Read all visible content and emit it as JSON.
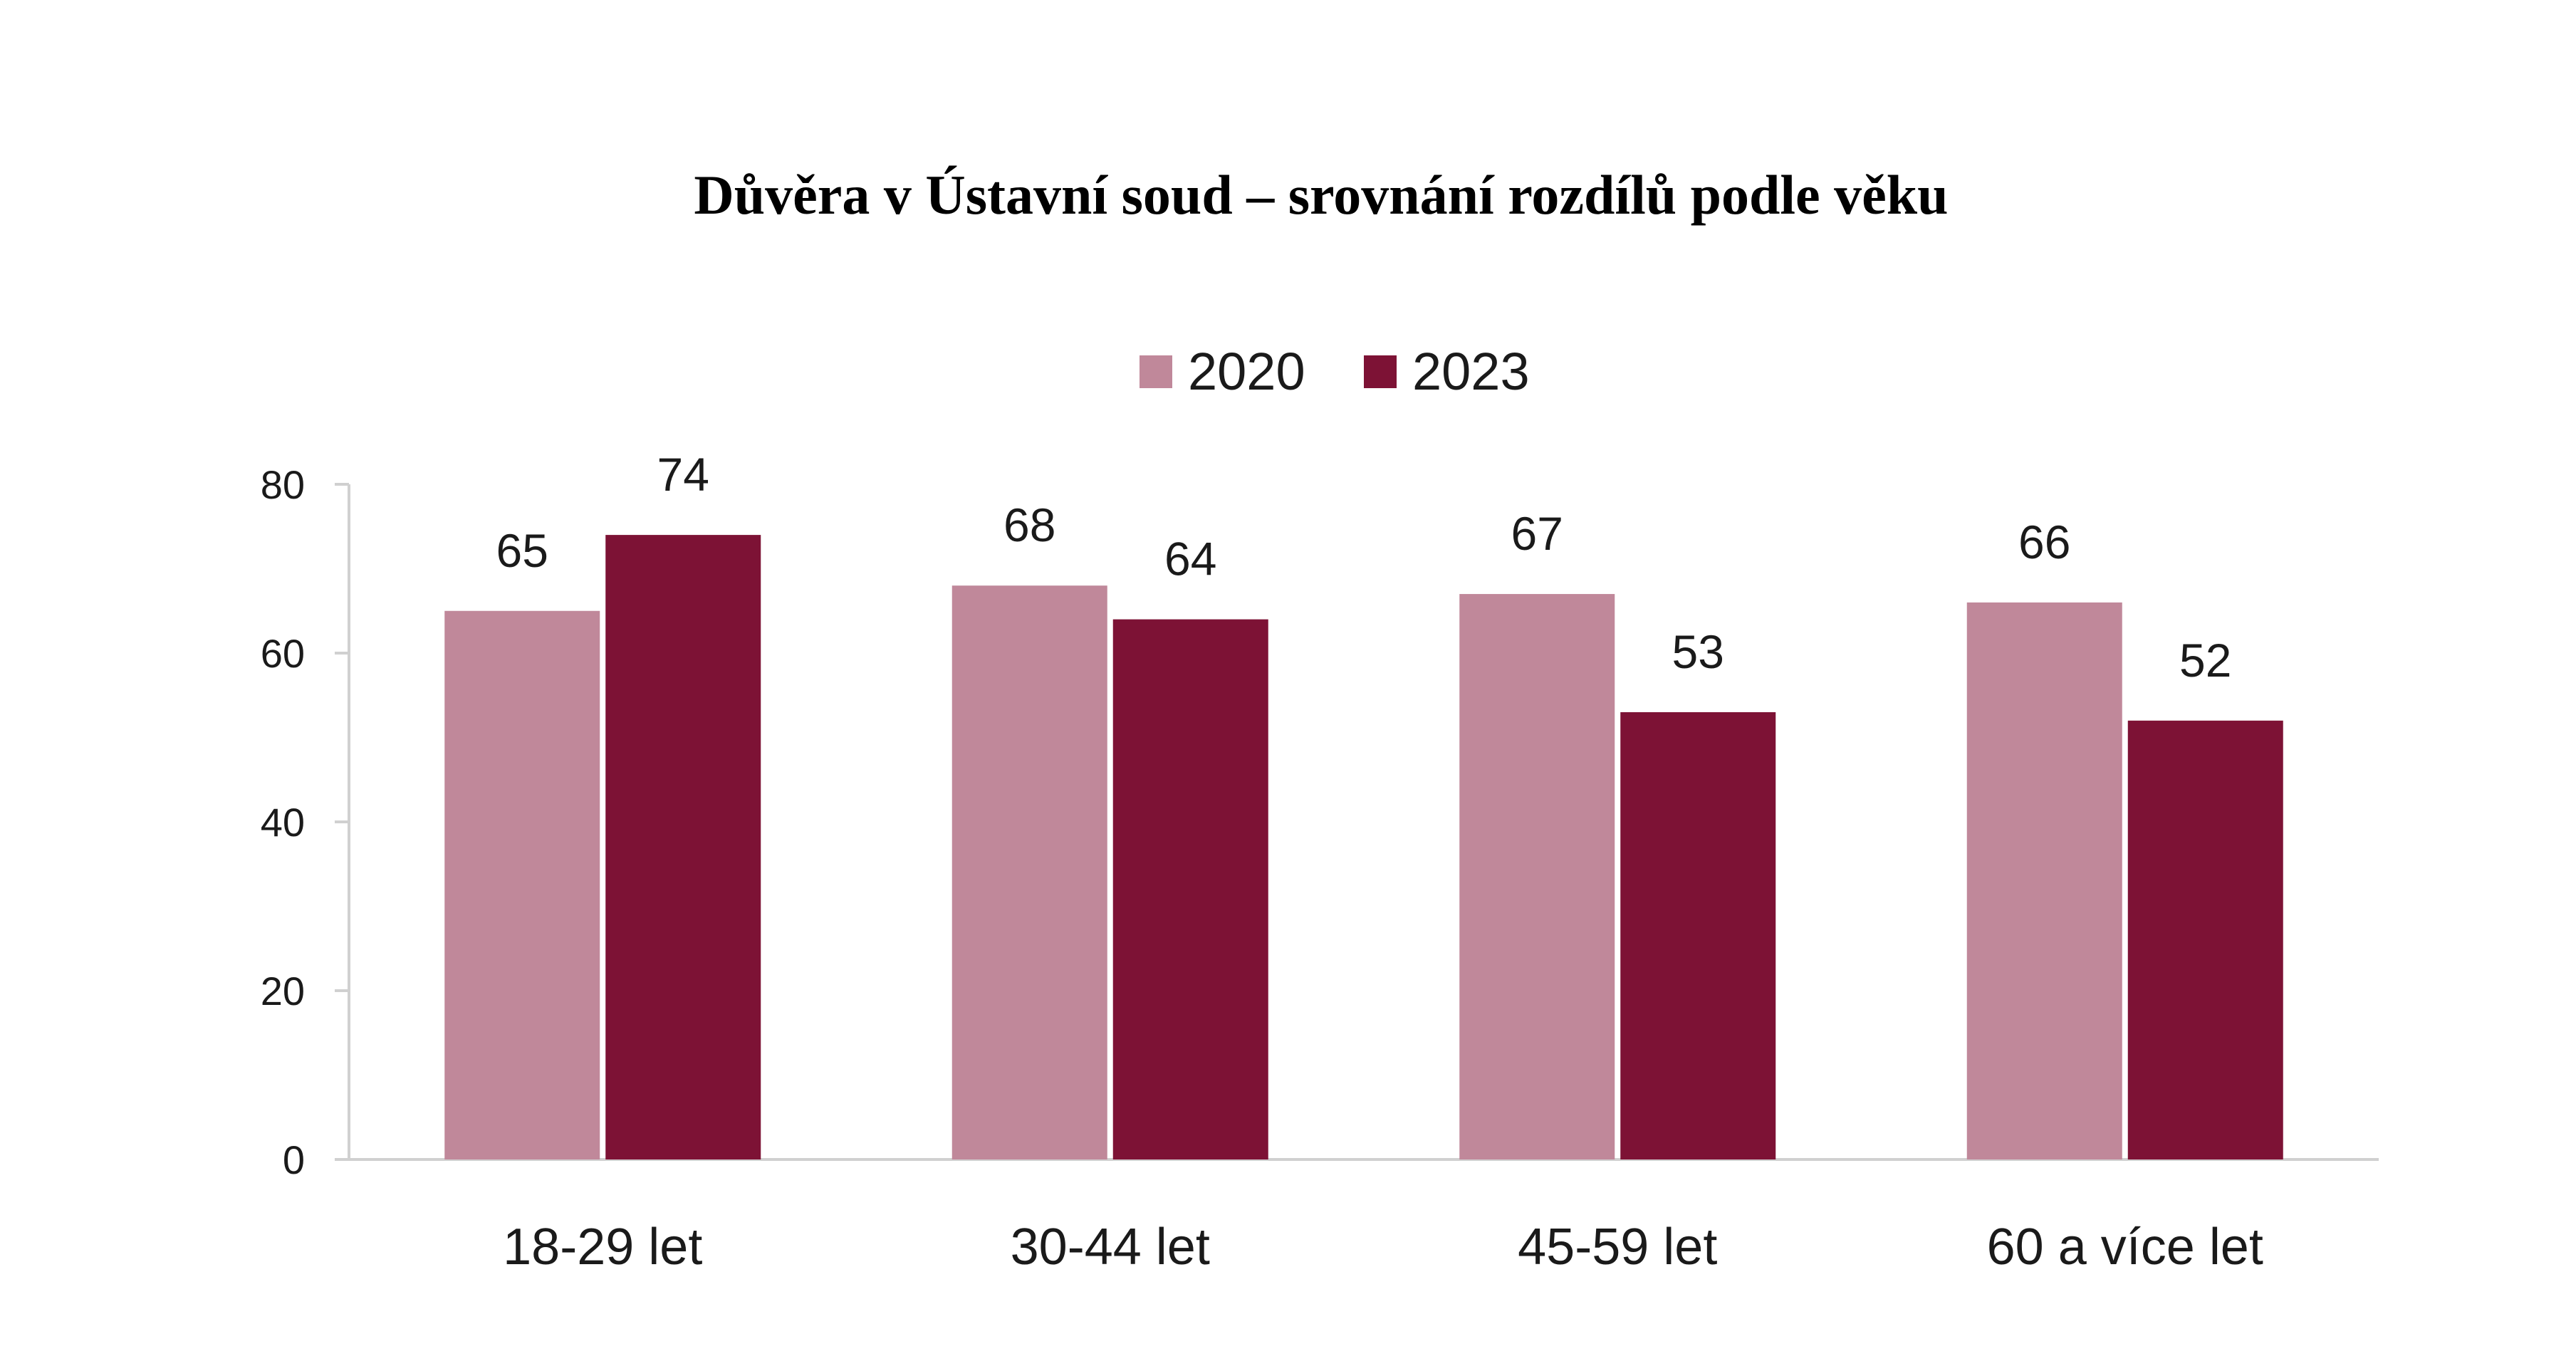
{
  "chart_data": {
    "type": "bar",
    "title": "Důvěra v Ústavní soud – srovnání rozdílů podle věku",
    "categories": [
      "18-29 let",
      "30-44 let",
      "45-59 let",
      "60 a více let"
    ],
    "series": [
      {
        "name": "2020",
        "values": [
          65,
          68,
          67,
          66
        ],
        "color": "#c0889a"
      },
      {
        "name": "2023",
        "values": [
          74,
          64,
          53,
          52
        ],
        "color": "#7d1235"
      }
    ],
    "xlabel": "",
    "ylabel": "",
    "ylim": [
      0,
      80
    ],
    "yticks": [
      "0",
      "20",
      "40",
      "60",
      "80"
    ],
    "legend_position": "top-center",
    "grid": false,
    "data_labels": true
  }
}
